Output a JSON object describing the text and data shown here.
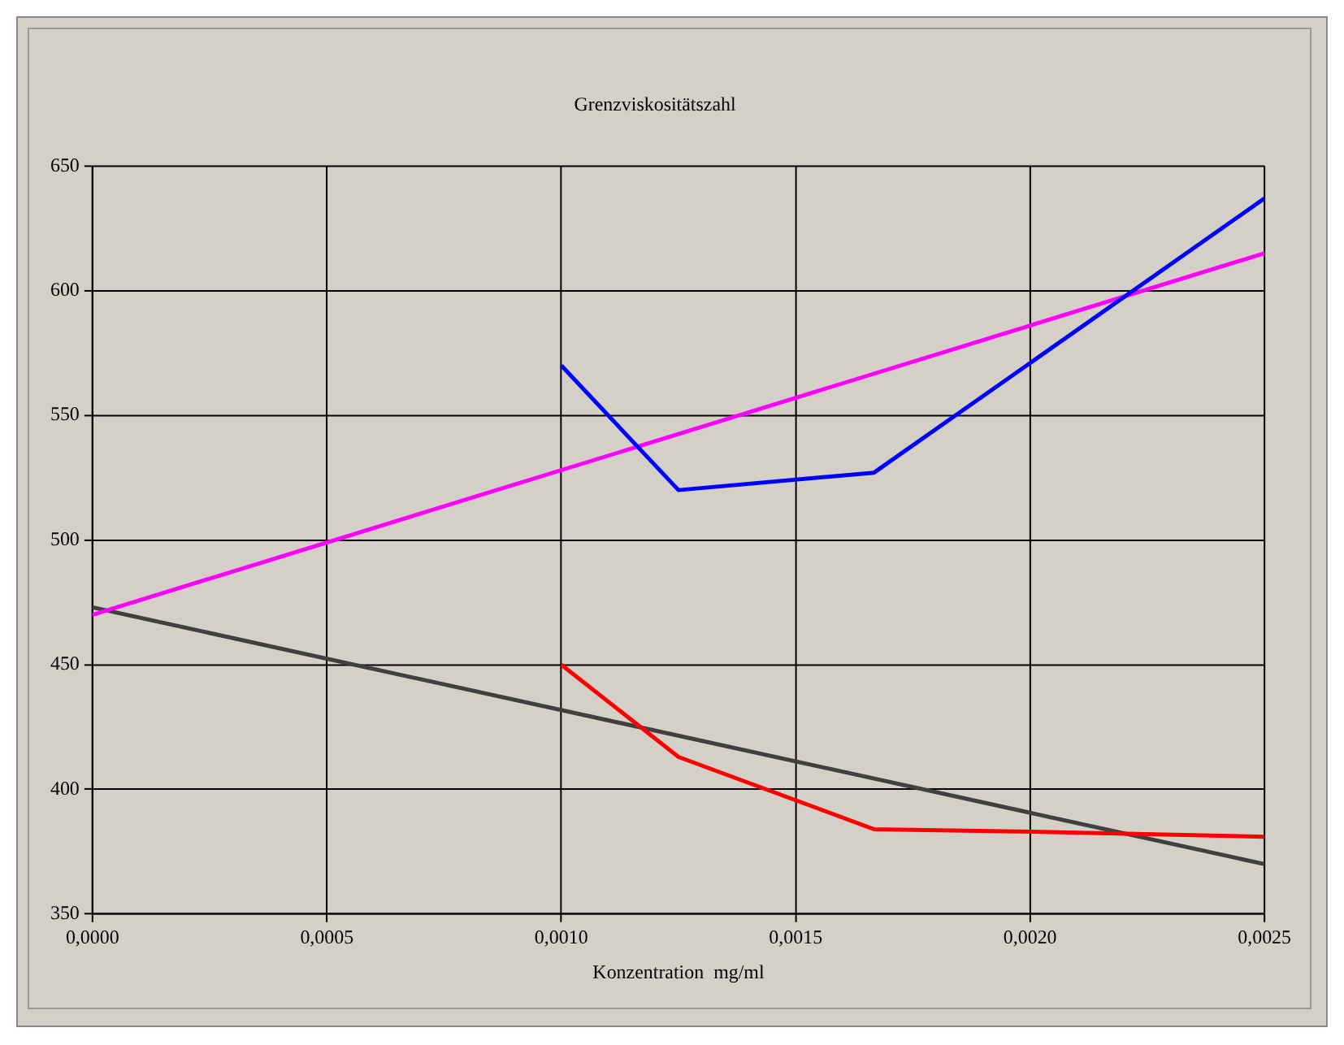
{
  "chart_data": {
    "type": "line",
    "title": "Grenzviskositätszahl",
    "xlabel": "Konzentration  mg/ml",
    "xlim": [
      0,
      0.0025
    ],
    "xticks": [
      {
        "value": 0,
        "label": "0,0000"
      },
      {
        "value": 0.0005,
        "label": "0,0005"
      },
      {
        "value": 0.001,
        "label": "0,0010"
      },
      {
        "value": 0.0015,
        "label": "0,0015"
      },
      {
        "value": 0.002,
        "label": "0,0020"
      },
      {
        "value": 0.0025,
        "label": "0,0025"
      }
    ],
    "ylim": [
      350,
      650
    ],
    "yticks": [
      350,
      400,
      450,
      500,
      550,
      600,
      650
    ],
    "grid": true,
    "legend": false,
    "marker": "none",
    "line_style": "solid",
    "series": [
      {
        "color": "#0000ff",
        "x": [
          0.001,
          0.00125,
          0.001667,
          0.0025
        ],
        "values": [
          570,
          520,
          527,
          637
        ]
      },
      {
        "color": "#ff0000",
        "x": [
          0.001,
          0.00125,
          0.001667,
          0.002,
          0.0025
        ],
        "values": [
          450,
          413,
          384,
          383,
          381
        ]
      },
      {
        "color": "#ff00ff",
        "x": [
          0,
          0.0025
        ],
        "values": [
          470,
          615
        ]
      },
      {
        "color": "#404040",
        "x": [
          0,
          0.0025
        ],
        "values": [
          473,
          370
        ]
      }
    ]
  }
}
